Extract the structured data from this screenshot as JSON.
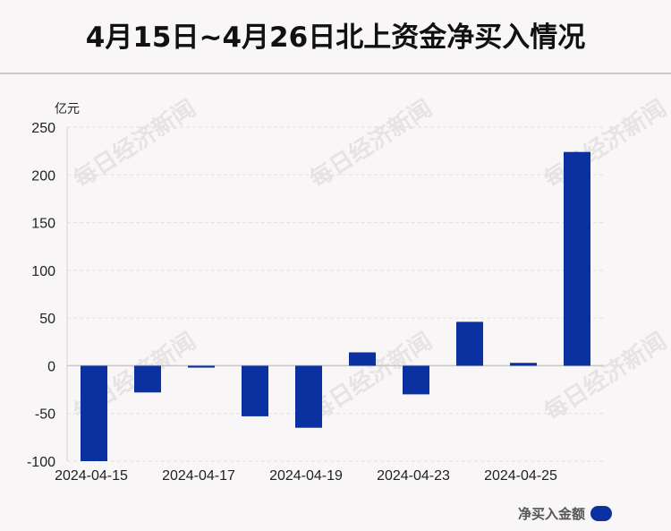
{
  "title": "4月15日~4月26日北上资金净买入情况",
  "watermark_text": "每日经济新闻",
  "colors": {
    "bar": "#0b31a1",
    "background": "#f8f6f7"
  },
  "chart_data": {
    "type": "bar",
    "unit": "亿元",
    "categories": [
      "2024-04-15",
      "2024-04-16",
      "2024-04-17",
      "2024-04-18",
      "2024-04-19",
      "2024-04-22",
      "2024-04-23",
      "2024-04-24",
      "2024-04-25",
      "2024-04-26"
    ],
    "x_tick_labels": [
      "2024-04-15",
      "2024-04-17",
      "2024-04-19",
      "2024-04-23",
      "2024-04-25"
    ],
    "series": [
      {
        "name": "净买入金额",
        "values": [
          -100,
          -28,
          -2,
          -53,
          -65,
          14,
          -30,
          46,
          3,
          224
        ]
      }
    ],
    "ylim": [
      -100,
      250
    ],
    "yticks": [
      250,
      200,
      150,
      100,
      50,
      0,
      -50,
      -100
    ],
    "grid": true,
    "legend_position": "bottom-right"
  }
}
